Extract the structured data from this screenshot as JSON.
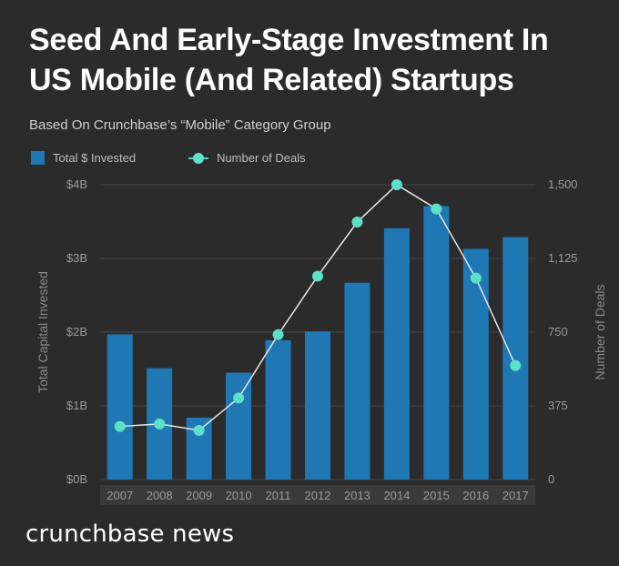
{
  "brand": "crunchbase news",
  "colors": {
    "background": "#2b2b2b",
    "bar": "#1f78b4",
    "line": "#e6e6e6",
    "point": "#5ce0c8",
    "grid": "#474747",
    "tick": "#9a9a9a"
  },
  "chart_data": {
    "type": "bar",
    "title": "Seed And Early-Stage Investment In US Mobile (And Related) Startups",
    "subtitle": "Based On Crunchbase’s “Mobile” Category Group",
    "categories": [
      "2007",
      "2008",
      "2009",
      "2010",
      "2011",
      "2012",
      "2013",
      "2014",
      "2015",
      "2016",
      "2017"
    ],
    "series": [
      {
        "name": "Total $ Invested",
        "type": "bar",
        "axis": "left",
        "values": [
          1.97,
          1.51,
          0.84,
          1.45,
          1.89,
          2.01,
          2.67,
          3.41,
          3.71,
          3.13,
          3.29
        ]
      },
      {
        "name": "Number of Deals",
        "type": "line",
        "axis": "right",
        "values": [
          270,
          283,
          250,
          415,
          737,
          1035,
          1310,
          1500,
          1377,
          1025,
          580
        ]
      }
    ],
    "ylabel": "Total Capital Invested",
    "y2label": "Number of Deals",
    "ylim": [
      0,
      4
    ],
    "y2lim": [
      0,
      1500
    ],
    "yticks": [
      "$0B",
      "$1B",
      "$2B",
      "$3B",
      "$4B"
    ],
    "y2ticks": [
      "0",
      "375",
      "750",
      "1,125",
      "1,500"
    ],
    "grid": true,
    "legend": "top-left"
  }
}
